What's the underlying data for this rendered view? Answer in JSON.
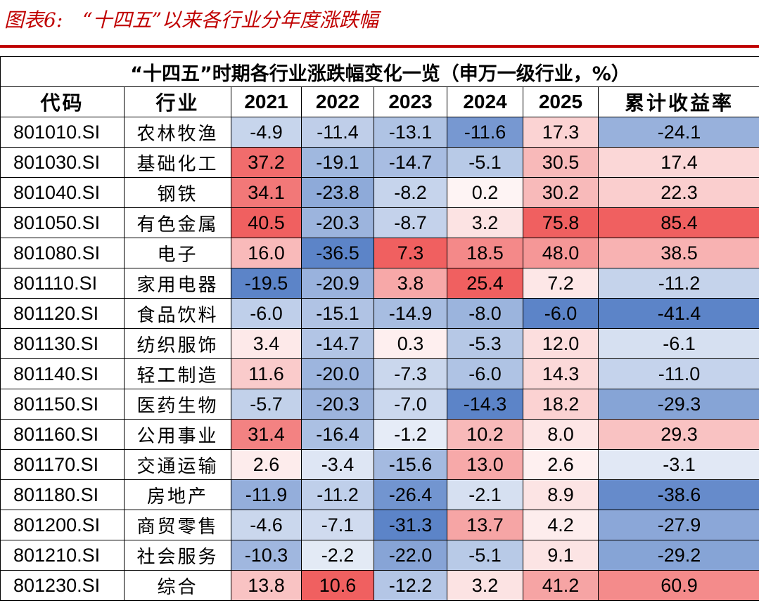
{
  "figure_title": "图表6:　“十四五”以来各行业分年度涨跌幅",
  "colors": {
    "title_red": "#c00000",
    "neg_max": "#5c84c8",
    "pos_max": "#f06060",
    "neutral": "#ffffff"
  },
  "table": {
    "caption": "“十四五”时期各行业涨跌幅变化一览（申万一级行业，%）",
    "headers": [
      "代码",
      "行业",
      "2021",
      "2022",
      "2023",
      "2024",
      "2025",
      "累计收益率"
    ],
    "rows": [
      {
        "code": "801010.SI",
        "industry": "农林牧渔",
        "values": [
          "-4.9",
          "-11.4",
          "-13.1",
          "-11.6",
          "17.3",
          "-24.1"
        ]
      },
      {
        "code": "801030.SI",
        "industry": "基础化工",
        "values": [
          "37.2",
          "-19.1",
          "-14.7",
          "-5.1",
          "30.5",
          "17.4"
        ]
      },
      {
        "code": "801040.SI",
        "industry": "钢铁",
        "values": [
          "34.1",
          "-23.8",
          "-8.2",
          "0.2",
          "30.2",
          "22.3"
        ]
      },
      {
        "code": "801050.SI",
        "industry": "有色金属",
        "values": [
          "40.5",
          "-20.3",
          "-8.7",
          "3.2",
          "75.8",
          "85.4"
        ]
      },
      {
        "code": "801080.SI",
        "industry": "电子",
        "values": [
          "16.0",
          "-36.5",
          "7.3",
          "18.5",
          "48.0",
          "38.5"
        ]
      },
      {
        "code": "801110.SI",
        "industry": "家用电器",
        "values": [
          "-19.5",
          "-20.9",
          "3.8",
          "25.4",
          "7.2",
          "-11.2"
        ]
      },
      {
        "code": "801120.SI",
        "industry": "食品饮料",
        "values": [
          "-6.0",
          "-15.1",
          "-14.9",
          "-8.0",
          "-6.0",
          "-41.4"
        ]
      },
      {
        "code": "801130.SI",
        "industry": "纺织服饰",
        "values": [
          "3.4",
          "-14.7",
          "0.3",
          "-5.3",
          "12.0",
          "-6.1"
        ]
      },
      {
        "code": "801140.SI",
        "industry": "轻工制造",
        "values": [
          "11.6",
          "-20.0",
          "-7.3",
          "-6.0",
          "14.3",
          "-11.0"
        ]
      },
      {
        "code": "801150.SI",
        "industry": "医药生物",
        "values": [
          "-5.7",
          "-20.3",
          "-7.0",
          "-14.3",
          "18.2",
          "-29.3"
        ]
      },
      {
        "code": "801160.SI",
        "industry": "公用事业",
        "values": [
          "31.4",
          "-16.4",
          "-1.2",
          "10.2",
          "8.0",
          "29.3"
        ]
      },
      {
        "code": "801170.SI",
        "industry": "交通运输",
        "values": [
          "2.6",
          "-3.4",
          "-15.6",
          "13.0",
          "2.6",
          "-3.1"
        ]
      },
      {
        "code": "801180.SI",
        "industry": "房地产",
        "values": [
          "-11.9",
          "-11.2",
          "-26.4",
          "-2.1",
          "8.9",
          "-38.6"
        ]
      },
      {
        "code": "801200.SI",
        "industry": "商贸零售",
        "values": [
          "-4.6",
          "-7.1",
          "-31.3",
          "13.7",
          "4.2",
          "-27.9"
        ]
      },
      {
        "code": "801210.SI",
        "industry": "社会服务",
        "values": [
          "-10.3",
          "-2.2",
          "-22.0",
          "-5.1",
          "9.1",
          "-29.2"
        ]
      },
      {
        "code": "801230.SI",
        "industry": "综合",
        "values": [
          "13.8",
          "10.6",
          "-12.2",
          "3.2",
          "41.2",
          "60.9"
        ]
      }
    ]
  }
}
